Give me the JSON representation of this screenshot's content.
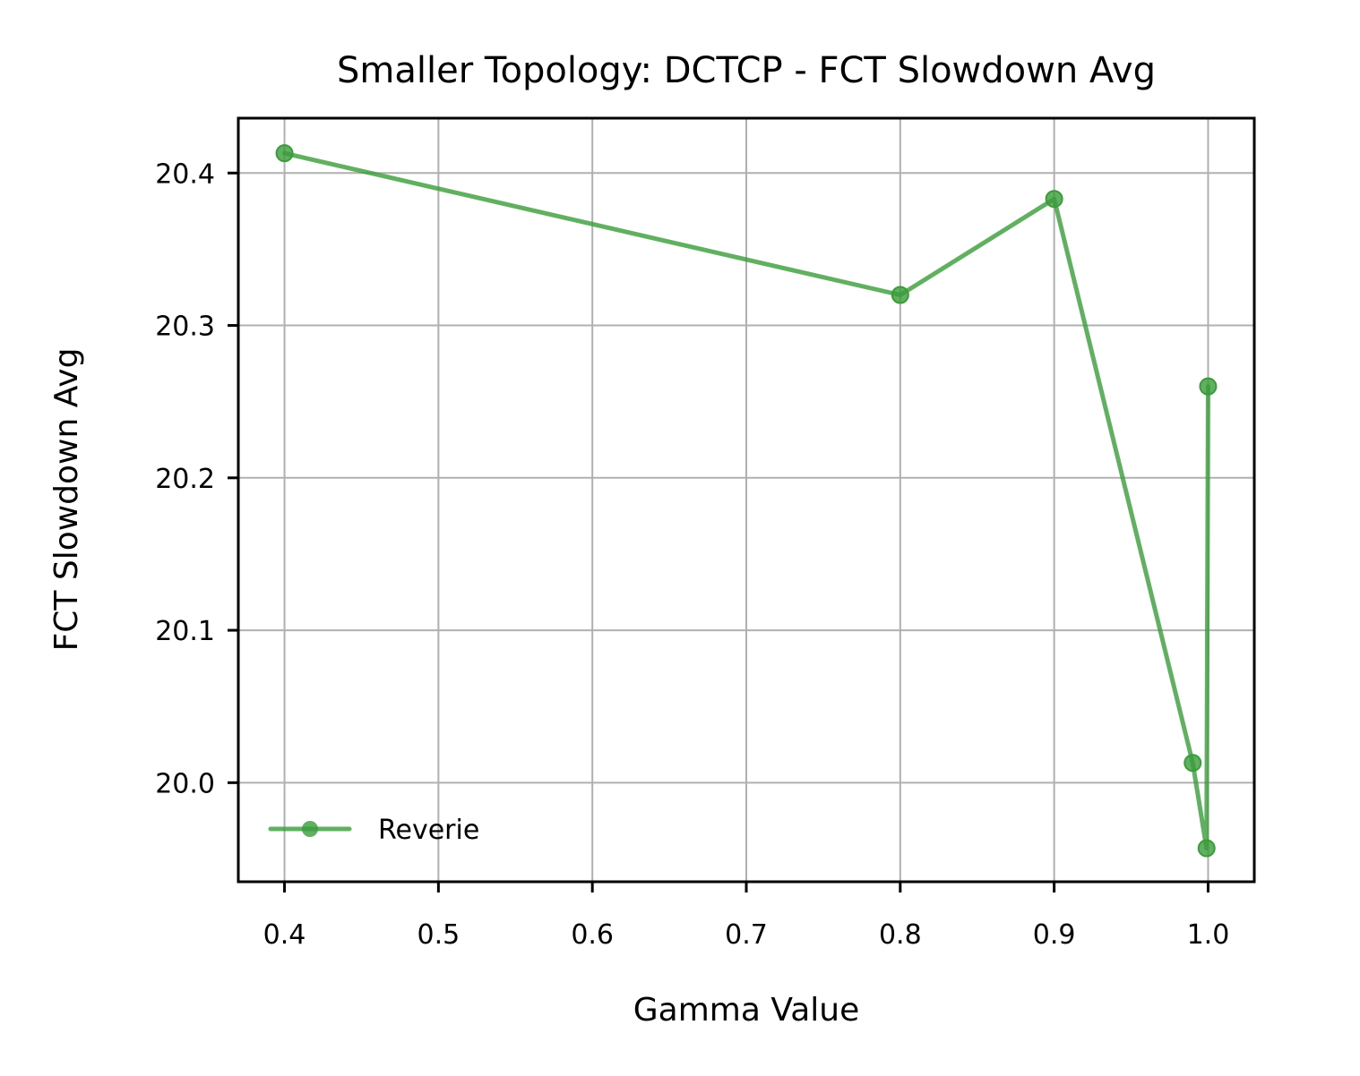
{
  "chart_data": {
    "type": "line",
    "title": "Smaller Topology: DCTCP - FCT Slowdown Avg",
    "xlabel": "Gamma Value",
    "ylabel": "FCT Slowdown Avg",
    "xlim": [
      0.37,
      1.03
    ],
    "ylim": [
      19.935,
      20.436
    ],
    "xticks": [
      0.4,
      0.5,
      0.6,
      0.7,
      0.8,
      0.9,
      1.0
    ],
    "xtick_labels": [
      "0.4",
      "0.5",
      "0.6",
      "0.7",
      "0.8",
      "0.9",
      "1.0"
    ],
    "yticks": [
      20.0,
      20.1,
      20.2,
      20.3,
      20.4
    ],
    "ytick_labels": [
      "20.0",
      "20.1",
      "20.2",
      "20.3",
      "20.4"
    ],
    "grid": true,
    "legend_position": "lower-left",
    "series": [
      {
        "name": "Reverie",
        "color": "#3a9c3a",
        "marker": "circle",
        "x": [
          0.4,
          0.8,
          0.9,
          0.99,
          0.999,
          1.0
        ],
        "y": [
          20.413,
          20.32,
          20.383,
          20.013,
          19.957,
          20.26
        ]
      }
    ]
  }
}
